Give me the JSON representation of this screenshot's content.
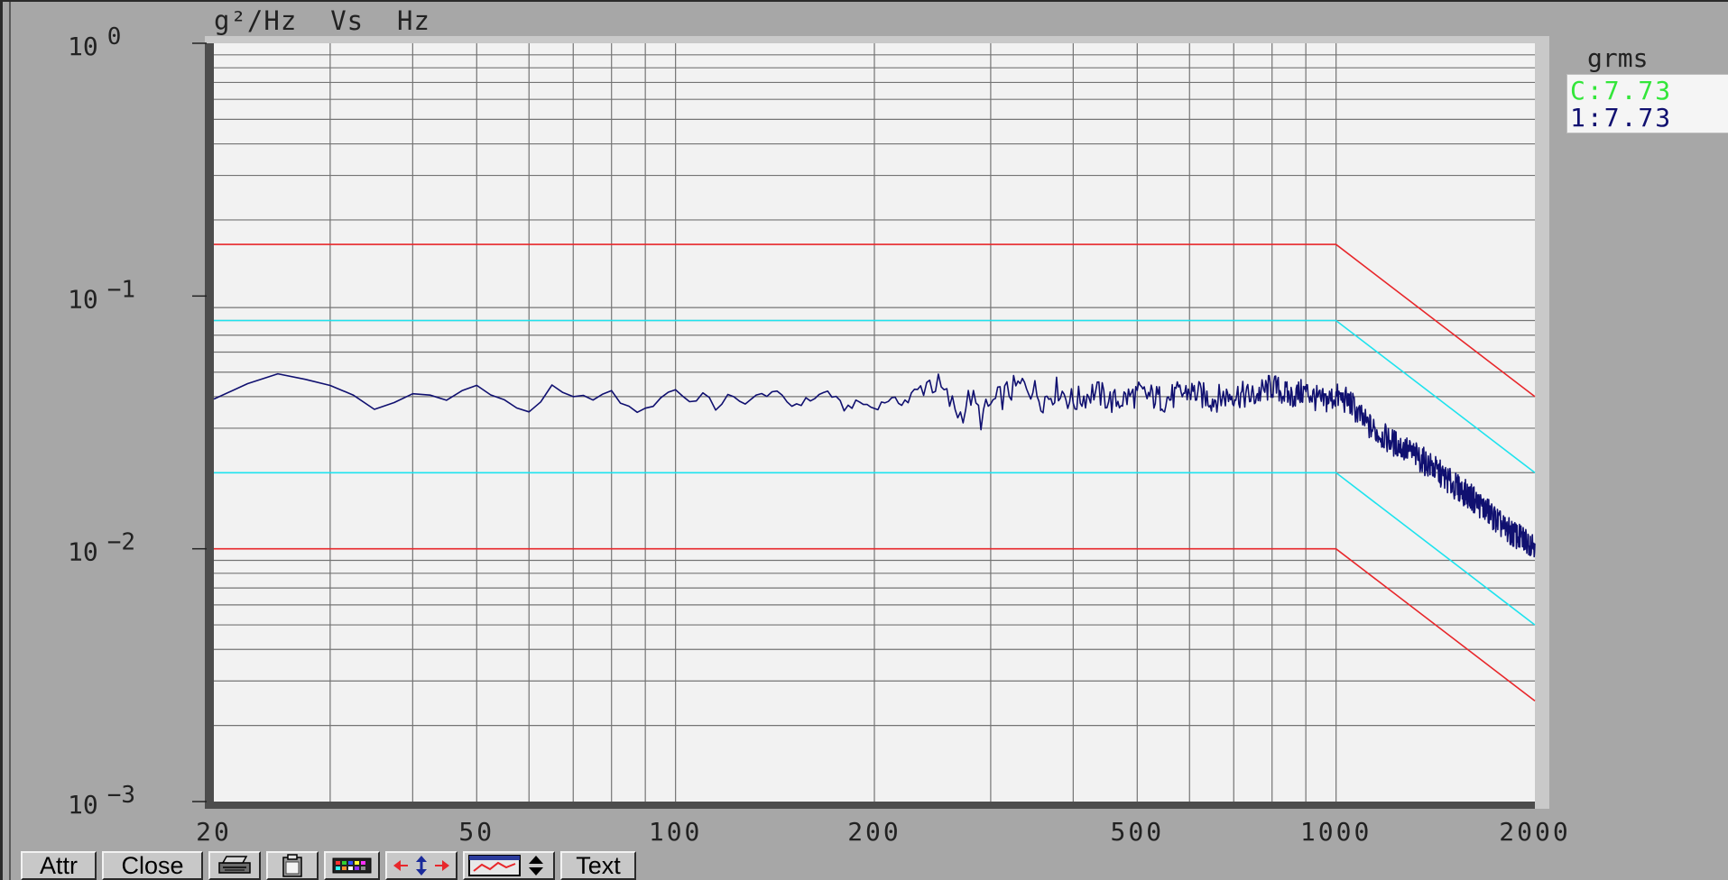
{
  "chart_data": {
    "type": "line",
    "title": "g²/Hz  Vs  Hz",
    "xscale": "log",
    "yscale": "log",
    "xlim": [
      20,
      2000
    ],
    "ylim": [
      0.001,
      1
    ],
    "x_ticks": [
      20,
      50,
      100,
      200,
      500,
      1000,
      2000
    ],
    "x_tick_labels": [
      "20",
      "50",
      "100",
      "200",
      "500",
      "1000",
      "2000"
    ],
    "y_ticks": [
      {
        "base": "10",
        "exp": "0",
        "value": 1
      },
      {
        "base": "10",
        "exp": "−1",
        "value": 0.1
      },
      {
        "base": "10",
        "exp": "−2",
        "value": 0.01
      },
      {
        "base": "10",
        "exp": "−3",
        "value": 0.001
      }
    ],
    "grid": true,
    "legend": {
      "title": "grms",
      "position": "right",
      "entries": [
        {
          "label": "C:7.73",
          "color": "#33e63a"
        },
        {
          "label": "1:7.73",
          "color": "#101070"
        }
      ]
    },
    "limit_lines": [
      {
        "role": "abort-high",
        "color": "#e8272b",
        "x": [
          20,
          1000,
          2000
        ],
        "y": [
          0.16,
          0.16,
          0.04
        ]
      },
      {
        "role": "alarm-high",
        "color": "#1ee3ee",
        "x": [
          20,
          1000,
          2000
        ],
        "y": [
          0.08,
          0.08,
          0.02
        ]
      },
      {
        "role": "alarm-low",
        "color": "#1ee3ee",
        "x": [
          20,
          1000,
          2000
        ],
        "y": [
          0.02,
          0.02,
          0.005
        ]
      },
      {
        "role": "abort-low",
        "color": "#e8272b",
        "x": [
          20,
          1000,
          2000
        ],
        "y": [
          0.01,
          0.01,
          0.0025
        ]
      }
    ],
    "series": [
      {
        "color": "#101070",
        "x": [
          20,
          25,
          30,
          35,
          40,
          45,
          50,
          55,
          60,
          65,
          70,
          75,
          80,
          85,
          90,
          95,
          100,
          105,
          110,
          115,
          120,
          125,
          130,
          140,
          150,
          160,
          170,
          180,
          190,
          200,
          210,
          220,
          230,
          240,
          250,
          260,
          270,
          280,
          290,
          300,
          320,
          340,
          360,
          380,
          400,
          430,
          460,
          500,
          550,
          600,
          650,
          700,
          750,
          800,
          850,
          900,
          950,
          1000,
          1050,
          1100,
          1150,
          1200,
          1300,
          1400,
          1500,
          1600,
          1700,
          1800,
          1900,
          2000
        ],
        "y": [
          0.04,
          0.049,
          0.045,
          0.035,
          0.041,
          0.04,
          0.044,
          0.038,
          0.035,
          0.043,
          0.039,
          0.04,
          0.041,
          0.036,
          0.035,
          0.04,
          0.043,
          0.038,
          0.041,
          0.036,
          0.04,
          0.038,
          0.039,
          0.042,
          0.037,
          0.039,
          0.042,
          0.036,
          0.038,
          0.036,
          0.039,
          0.038,
          0.04,
          0.046,
          0.044,
          0.038,
          0.034,
          0.04,
          0.033,
          0.037,
          0.042,
          0.045,
          0.039,
          0.043,
          0.038,
          0.042,
          0.038,
          0.041,
          0.039,
          0.042,
          0.039,
          0.041,
          0.04,
          0.044,
          0.04,
          0.042,
          0.038,
          0.04,
          0.038,
          0.032,
          0.029,
          0.027,
          0.024,
          0.021,
          0.018,
          0.016,
          0.014,
          0.012,
          0.011,
          0.0105
        ]
      }
    ]
  },
  "toolbar": {
    "buttons": [
      {
        "label": "Attr",
        "icon": ""
      },
      {
        "label": "Close",
        "icon": ""
      },
      {
        "label": "",
        "icon": "printer-icon"
      },
      {
        "label": "",
        "icon": "clipboard-icon"
      },
      {
        "label": "",
        "icon": "color-palette-icon"
      },
      {
        "label": "",
        "icon": "zoom-arrows-icon"
      },
      {
        "label": "",
        "icon": "plot-settings-icon"
      },
      {
        "label": "Text",
        "icon": ""
      }
    ]
  }
}
